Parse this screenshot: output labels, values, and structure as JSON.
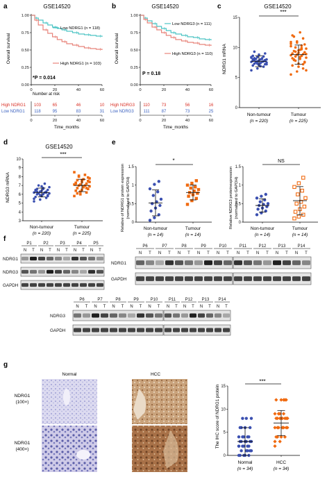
{
  "panel_letters": [
    "a",
    "b",
    "c",
    "d",
    "e",
    "f",
    "g"
  ],
  "colors": {
    "low": "#4cc4c4",
    "high": "#e8837a",
    "blue": "#3a4fb0",
    "orange": "#f06a10",
    "red_text": "#d93025",
    "blue_text": "#3b62c0"
  },
  "panel_a": {
    "title": "GSE14520",
    "ylabel": "Overall survival",
    "xlabel": "Time_months",
    "low_label": "Low NDRG1 (n = 118)",
    "high_label": "High NDRG1 (n = 103)",
    "pvalue": "*P = 0.014",
    "risk_title": "Number at risk",
    "risk_rows": [
      {
        "label": "High NDRG1",
        "values": [
          "103",
          "65",
          "46",
          "10"
        ]
      },
      {
        "label": "Low NDRG1",
        "values": [
          "118",
          "95",
          "83",
          "31"
        ]
      }
    ],
    "risk_x": [
      "0",
      "20",
      "40",
      "60"
    ]
  },
  "panel_b": {
    "title": "GSE14520",
    "ylabel": "Overall survival",
    "xlabel": "Time_months",
    "low_label": "Low NDRG3 (n = 111)",
    "high_label": "High NDRG3 (n = 110)",
    "pvalue": "P = 0.18",
    "risk_rows": [
      {
        "label": "High NDRG3",
        "values": [
          "110",
          "73",
          "56",
          "16"
        ]
      },
      {
        "label": "Low NDRG3",
        "values": [
          "111",
          "87",
          "73",
          "25"
        ]
      }
    ],
    "risk_x": [
      "0",
      "20",
      "40",
      "60"
    ]
  },
  "panel_c": {
    "title": "GSE14520",
    "ylabel": "NDRG1 mRNA",
    "sig": "***",
    "group1": "Non-tumour",
    "n1": "(n = 220)",
    "group2": "Tumour",
    "n2": "(n = 225)"
  },
  "panel_d": {
    "title": "GSE14520",
    "ylabel": "NDRG3 mRNA",
    "sig": "***",
    "group1": "Non-tumour",
    "n1": "(n = 220)",
    "group2": "Tumour",
    "n2": "(n = 225)"
  },
  "panel_e1": {
    "ylabel1": "Relative of NDRG1 protein expression",
    "ylabel2": "(normalised to GAPDH)",
    "sig": "*",
    "group1": "Non-tumour",
    "n1": "(n = 14)",
    "group2": "Tumour",
    "n2": "(n = 14)"
  },
  "panel_e2": {
    "ylabel1": "Relative NDRG3 proteinexpression",
    "ylabel2": "(normalised to GAPDH)",
    "sig": "NS",
    "group1": "Non-tumour",
    "n1": "(n = 14)",
    "group2": "Tumour",
    "n2": "(n = 14)"
  },
  "panel_f": {
    "blot1_pairs": [
      "P1",
      "P2",
      "P3",
      "P4",
      "P5"
    ],
    "blot1_rows": [
      "NDRG1",
      "NDRG3",
      "GAPDH"
    ],
    "blot2_pairs_a": [
      "P6",
      "P7",
      "P8",
      "P9",
      "P10"
    ],
    "blot2_pairs_b": [
      "P11",
      "P12",
      "P13",
      "P14"
    ],
    "blot2_rows": [
      "NDRG1",
      "GAPDH"
    ],
    "blot3_pairs_a": [
      "P6",
      "P7",
      "P8",
      "P9",
      "P10"
    ],
    "blot3_pairs_b": [
      "P11",
      "P12",
      "P13",
      "P14"
    ],
    "blot3_rows": [
      "NDRG3",
      "GAPDH"
    ],
    "N": "N",
    "T": "T"
  },
  "panel_g": {
    "col_normal": "Normal",
    "col_hcc": "HCC",
    "row1_a": "NDRG1",
    "row1_b": "(100×)",
    "row2_a": "NDRG1",
    "row2_b": "(400×)",
    "ylabel": "The IHC score of NDRG1 protein",
    "sig": "***",
    "group1": "Normal",
    "n1": "(n = 34)",
    "group2": "HCC",
    "n2": "(n = 34)"
  },
  "chart_data": [
    {
      "type": "line",
      "panel": "a",
      "title": "GSE14520",
      "xlabel": "Time_months",
      "ylabel": "Overall survival",
      "xlim": [
        0,
        60
      ],
      "ylim": [
        0,
        1.0
      ],
      "xticks": [
        0,
        20,
        40,
        60
      ],
      "yticks": [
        0.0,
        0.25,
        0.5,
        0.75,
        1.0
      ],
      "series": [
        {
          "name": "Low NDRG1 (n = 118)",
          "x": [
            0,
            3,
            6,
            10,
            14,
            18,
            22,
            26,
            30,
            35,
            40,
            45,
            50,
            55,
            60
          ],
          "y": [
            1.0,
            0.96,
            0.93,
            0.89,
            0.86,
            0.83,
            0.81,
            0.79,
            0.77,
            0.75,
            0.73,
            0.72,
            0.71,
            0.7,
            0.69
          ]
        },
        {
          "name": "High NDRG1 (n = 103)",
          "x": [
            0,
            3,
            6,
            10,
            14,
            18,
            22,
            26,
            30,
            35,
            40,
            45,
            50,
            55,
            60
          ],
          "y": [
            1.0,
            0.93,
            0.86,
            0.79,
            0.74,
            0.69,
            0.65,
            0.62,
            0.59,
            0.57,
            0.55,
            0.53,
            0.52,
            0.51,
            0.5
          ]
        }
      ]
    },
    {
      "type": "line",
      "panel": "b",
      "title": "GSE14520",
      "xlabel": "Time_months",
      "ylabel": "Overall survival",
      "xlim": [
        0,
        60
      ],
      "ylim": [
        0,
        1.0
      ],
      "xticks": [
        0,
        20,
        40,
        60
      ],
      "yticks": [
        0.0,
        0.25,
        0.5,
        0.75,
        1.0
      ],
      "series": [
        {
          "name": "Low NDRG3 (n = 111)",
          "x": [
            0,
            3,
            6,
            10,
            14,
            18,
            22,
            26,
            30,
            35,
            40,
            45,
            50,
            55,
            60
          ],
          "y": [
            1.0,
            0.96,
            0.92,
            0.88,
            0.84,
            0.81,
            0.78,
            0.75,
            0.73,
            0.71,
            0.69,
            0.68,
            0.66,
            0.65,
            0.64
          ]
        },
        {
          "name": "High NDRG3 (n = 110)",
          "x": [
            0,
            3,
            6,
            10,
            14,
            18,
            22,
            26,
            30,
            35,
            40,
            45,
            50,
            55,
            60
          ],
          "y": [
            1.0,
            0.94,
            0.89,
            0.83,
            0.79,
            0.75,
            0.71,
            0.68,
            0.65,
            0.63,
            0.61,
            0.6,
            0.58,
            0.57,
            0.56
          ]
        }
      ]
    },
    {
      "type": "scatter",
      "panel": "c",
      "ylabel": "NDRG1 mRNA",
      "ylim": [
        0,
        15
      ],
      "yticks": [
        0,
        5,
        10,
        15
      ],
      "categories": [
        "Non-tumour",
        "Tumour"
      ],
      "series": [
        {
          "name": "Non-tumour",
          "mean": 7.7,
          "sd": 0.9,
          "values": [
            6.2,
            6.5,
            6.8,
            7.0,
            7.1,
            7.2,
            7.3,
            7.4,
            7.5,
            7.5,
            7.6,
            7.6,
            7.7,
            7.7,
            7.8,
            7.8,
            7.9,
            7.9,
            8.0,
            8.0,
            8.1,
            8.2,
            8.3,
            8.4,
            8.5,
            8.6,
            8.8,
            9.0,
            9.3,
            6.9,
            7.2,
            7.6,
            8.1,
            8.4,
            7.3,
            7.7,
            8.0,
            7.1,
            7.8,
            8.2
          ]
        },
        {
          "name": "Tumour",
          "mean": 8.8,
          "sd": 1.6,
          "values": [
            5.5,
            6.0,
            6.5,
            7.0,
            7.3,
            7.6,
            7.9,
            8.1,
            8.3,
            8.5,
            8.6,
            8.7,
            8.8,
            8.9,
            9.0,
            9.1,
            9.2,
            9.4,
            9.6,
            9.8,
            10.0,
            10.3,
            10.6,
            11.0,
            11.5,
            12.0,
            6.8,
            7.5,
            8.0,
            8.4,
            8.9,
            9.3,
            9.7,
            10.2,
            10.8,
            7.2,
            8.2,
            9.5,
            10.5,
            11.8,
            12.5,
            6.2,
            7.8,
            9.9,
            10.9
          ]
        }
      ]
    },
    {
      "type": "scatter",
      "panel": "d",
      "ylabel": "NDRG3 mRNA",
      "ylim": [
        3,
        10
      ],
      "yticks": [
        3,
        4,
        5,
        6,
        7,
        8,
        9,
        10
      ],
      "categories": [
        "Non-tumour",
        "Tumour"
      ],
      "series": [
        {
          "name": "Non-tumour",
          "mean": 6.2,
          "sd": 0.5,
          "values": [
            5.2,
            5.4,
            5.6,
            5.7,
            5.8,
            5.9,
            6.0,
            6.0,
            6.1,
            6.1,
            6.2,
            6.2,
            6.3,
            6.3,
            6.4,
            6.4,
            6.5,
            6.6,
            6.7,
            6.8,
            7.0,
            7.2,
            5.5,
            5.9,
            6.2,
            6.5,
            6.9,
            5.8,
            6.3,
            6.6
          ]
        },
        {
          "name": "Tumour",
          "mean": 7.0,
          "sd": 0.7,
          "values": [
            5.8,
            6.0,
            6.2,
            6.4,
            6.5,
            6.6,
            6.7,
            6.8,
            6.9,
            7.0,
            7.0,
            7.1,
            7.1,
            7.2,
            7.3,
            7.4,
            7.5,
            7.6,
            7.7,
            7.8,
            8.0,
            8.2,
            8.5,
            6.3,
            6.7,
            7.2,
            7.6,
            7.9,
            6.1,
            6.9,
            7.4,
            8.1
          ]
        }
      ]
    },
    {
      "type": "scatter",
      "panel": "e-left",
      "ylim": [
        0,
        1.5
      ],
      "yticks": [
        0,
        0.5,
        1.0,
        1.5
      ],
      "categories": [
        "Non-tumour",
        "Tumour"
      ],
      "series": [
        {
          "name": "Non-tumour",
          "mean": 0.52,
          "sd": 0.35,
          "values": [
            0.05,
            0.12,
            0.2,
            0.3,
            0.38,
            0.45,
            0.5,
            0.55,
            0.62,
            0.72,
            0.82,
            0.9,
            1.02,
            1.1
          ]
        },
        {
          "name": "Tumour",
          "mean": 0.8,
          "sd": 0.2,
          "values": [
            0.48,
            0.58,
            0.64,
            0.7,
            0.74,
            0.78,
            0.8,
            0.84,
            0.88,
            0.92,
            0.95,
            1.0,
            1.05,
            1.12
          ]
        }
      ]
    },
    {
      "type": "scatter",
      "panel": "e-right",
      "ylim": [
        0,
        1.5
      ],
      "yticks": [
        0,
        0.5,
        1.0,
        1.5
      ],
      "categories": [
        "Non-tumour",
        "Tumour"
      ],
      "series": [
        {
          "name": "Non-tumour",
          "mean": 0.45,
          "sd": 0.18,
          "values": [
            0.2,
            0.25,
            0.3,
            0.35,
            0.38,
            0.42,
            0.45,
            0.48,
            0.5,
            0.55,
            0.6,
            0.65,
            0.7,
            0.75
          ]
        },
        {
          "name": "Tumour",
          "mean": 0.58,
          "sd": 0.38,
          "values": [
            0.1,
            0.15,
            0.2,
            0.28,
            0.35,
            0.42,
            0.5,
            0.55,
            0.65,
            0.75,
            0.85,
            0.95,
            1.05,
            1.2
          ]
        }
      ]
    },
    {
      "type": "scatter",
      "panel": "g",
      "ylabel": "The IHC score of NDRG1 protein",
      "ylim": [
        0,
        15
      ],
      "yticks": [
        0,
        5,
        10,
        15
      ],
      "categories": [
        "Normal",
        "HCC"
      ],
      "series": [
        {
          "name": "Normal",
          "mean": 3.0,
          "sd": 3.0,
          "values": [
            0,
            0,
            0,
            0,
            0,
            1,
            1,
            1,
            1,
            2,
            2,
            2,
            2,
            2,
            3,
            3,
            3,
            3,
            3,
            3,
            4,
            4,
            4,
            4,
            4,
            6,
            6,
            6,
            6,
            8,
            8,
            8,
            1,
            2
          ]
        },
        {
          "name": "HCC",
          "mean": 7.0,
          "sd": 2.7,
          "values": [
            2,
            3,
            4,
            4,
            4,
            6,
            6,
            6,
            6,
            6,
            6,
            6,
            8,
            8,
            8,
            8,
            8,
            8,
            8,
            8,
            9,
            9,
            9,
            9,
            12,
            12,
            12,
            12,
            4,
            6,
            8,
            9,
            12,
            3
          ]
        }
      ]
    }
  ]
}
